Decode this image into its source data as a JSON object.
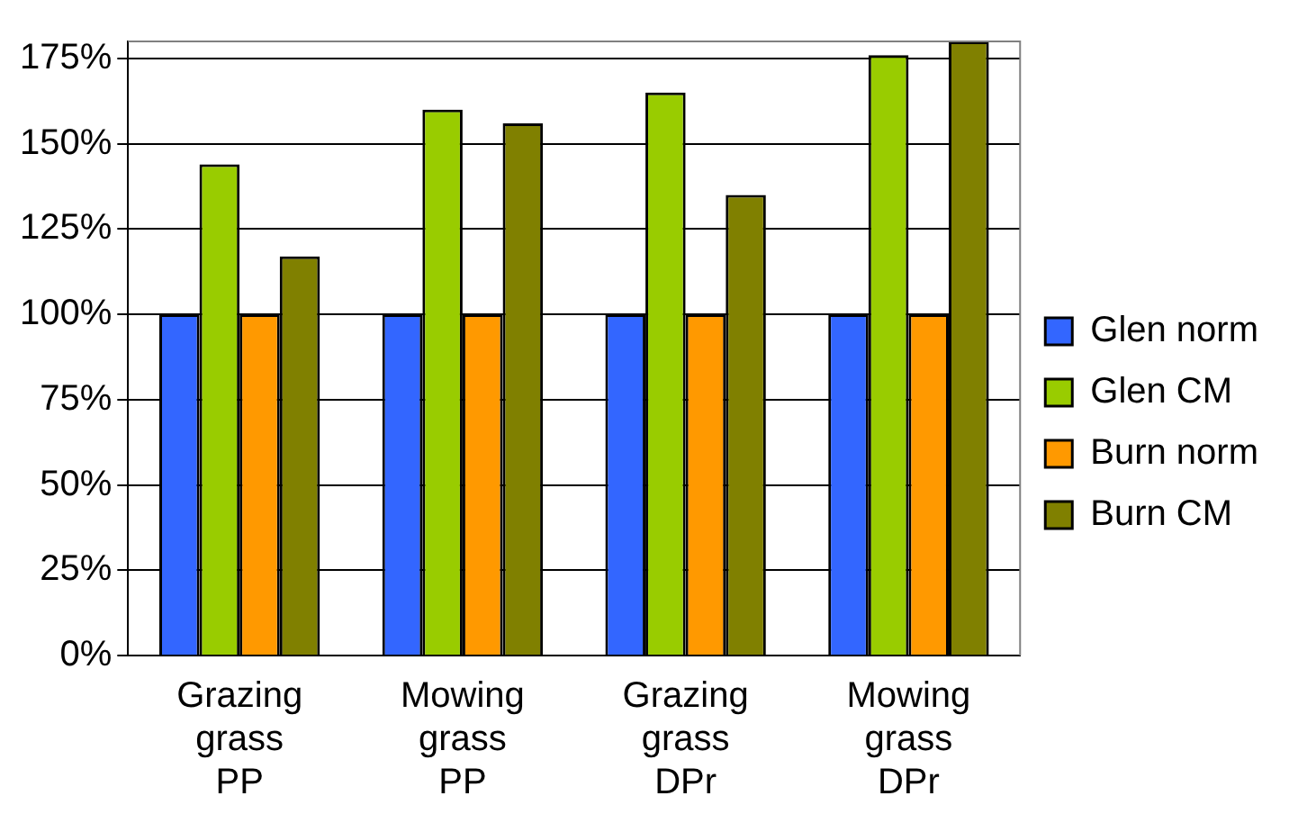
{
  "chart_data": {
    "type": "bar",
    "categories": [
      "Grazing grass PP",
      "Mowing grass PP",
      "Grazing grass DPr",
      "Mowing grass DPr"
    ],
    "series": [
      {
        "name": "Glen norm",
        "color": "#3366ff",
        "values": [
          100,
          100,
          100,
          100
        ]
      },
      {
        "name": "Glen CM",
        "color": "#99cc00",
        "values": [
          144,
          160,
          165,
          176
        ]
      },
      {
        "name": "Burn norm",
        "color": "#ff9900",
        "values": [
          100,
          100,
          100,
          100
        ]
      },
      {
        "name": "Burn CM",
        "color": "#808000",
        "values": [
          117,
          156,
          135,
          180
        ]
      }
    ],
    "ylim": [
      0,
      180
    ],
    "yticks": [
      {
        "value": 0,
        "label": "0%"
      },
      {
        "value": 25,
        "label": "25%"
      },
      {
        "value": 50,
        "label": "50%"
      },
      {
        "value": 75,
        "label": "75%"
      },
      {
        "value": 100,
        "label": "100%"
      },
      {
        "value": 125,
        "label": "125%"
      },
      {
        "value": 150,
        "label": "150%"
      },
      {
        "value": 175,
        "label": "175%"
      }
    ],
    "grid": "y",
    "legend": "right"
  }
}
